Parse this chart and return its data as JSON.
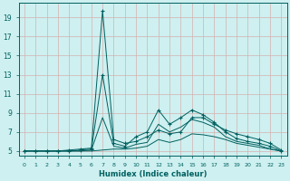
{
  "xlabel": "Humidex (Indice chaleur)",
  "ylabel": "",
  "bg_color": "#cef0f0",
  "line_color": "#006060",
  "grid_color": "#d4b0b0",
  "xlim": [
    -0.5,
    23.5
  ],
  "ylim": [
    4.5,
    20.5
  ],
  "xticks": [
    0,
    1,
    2,
    3,
    4,
    5,
    6,
    7,
    8,
    9,
    10,
    11,
    12,
    13,
    14,
    15,
    16,
    17,
    18,
    19,
    20,
    21,
    22,
    23
  ],
  "yticks": [
    5,
    7,
    9,
    11,
    13,
    15,
    17,
    19
  ],
  "lines": [
    {
      "x": [
        0,
        1,
        2,
        3,
        4,
        5,
        6,
        7,
        8,
        9,
        10,
        11,
        12,
        13,
        14,
        15,
        16,
        17,
        18,
        19,
        20,
        21,
        22,
        23
      ],
      "y": [
        5,
        5,
        5.0,
        5.0,
        5.1,
        5.2,
        5.3,
        19.7,
        6.2,
        5.8,
        6.0,
        6.5,
        7.2,
        6.8,
        7.0,
        8.5,
        8.5,
        7.8,
        7.2,
        6.8,
        6.5,
        6.2,
        5.8,
        5.1
      ],
      "marker": true
    },
    {
      "x": [
        0,
        1,
        2,
        3,
        4,
        5,
        6,
        7,
        8,
        9,
        10,
        11,
        12,
        13,
        14,
        15,
        16,
        17,
        18,
        19,
        20,
        21,
        22,
        23
      ],
      "y": [
        5,
        5,
        5.0,
        5.0,
        5.0,
        5.1,
        5.2,
        13.0,
        5.8,
        5.5,
        6.5,
        7.0,
        9.3,
        7.8,
        8.5,
        9.3,
        8.8,
        8.0,
        7.0,
        6.3,
        6.0,
        5.8,
        5.5,
        5.0
      ],
      "marker": true
    },
    {
      "x": [
        0,
        1,
        2,
        3,
        4,
        5,
        6,
        7,
        8,
        9,
        10,
        11,
        12,
        13,
        14,
        15,
        16,
        17,
        18,
        19,
        20,
        21,
        22,
        23
      ],
      "y": [
        5,
        5,
        5.0,
        5.0,
        5.0,
        5.0,
        5.1,
        8.5,
        5.5,
        5.3,
        5.7,
        5.9,
        7.8,
        7.0,
        7.5,
        8.3,
        8.0,
        7.5,
        6.5,
        6.0,
        5.8,
        5.6,
        5.2,
        5.0
      ],
      "marker": false
    },
    {
      "x": [
        0,
        1,
        2,
        3,
        4,
        5,
        6,
        7,
        8,
        9,
        10,
        11,
        12,
        13,
        14,
        15,
        16,
        17,
        18,
        19,
        20,
        21,
        22,
        23
      ],
      "y": [
        5,
        5,
        5.0,
        5.0,
        5.0,
        5.0,
        5.0,
        5.1,
        5.2,
        5.2,
        5.3,
        5.5,
        6.2,
        5.9,
        6.2,
        6.8,
        6.7,
        6.5,
        6.2,
        5.8,
        5.6,
        5.4,
        5.2,
        5.0
      ],
      "marker": false
    }
  ]
}
